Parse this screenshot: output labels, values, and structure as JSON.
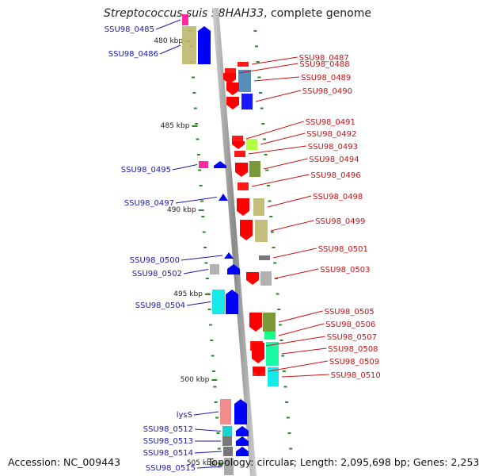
{
  "title": {
    "organism": "Streptococcus suis 98HAH33",
    "suffix": ", complete genome"
  },
  "footer": {
    "accession": "Accession: NC_009443",
    "summary": "Topology: circular; Length: 2,095,698 bp; Genes: 2,253"
  },
  "colors": {
    "left_label": "#1a1ab4",
    "right_label": "#cc1010",
    "axis": "#888888",
    "tick": "#2a8a2a"
  },
  "axis": {
    "start_kbp": 478.5,
    "end_kbp": 506.8,
    "major_ticks": [
      "480 kbp",
      "485 kbp",
      "490 kbp",
      "495 kbp",
      "500 kbp",
      "505 kbp"
    ]
  },
  "genes_left": [
    {
      "label": "SSU98_0485",
      "color": "#ff1493"
    },
    {
      "label": "SSU98_0486",
      "color": "#bdb76b"
    },
    {
      "label": "SSU98_0495",
      "color": "#ff1493"
    },
    {
      "label": "SSU98_0497",
      "color": "#0000ff"
    },
    {
      "label": "SSU98_0500",
      "color": "#0000ff"
    },
    {
      "label": "SSU98_0502",
      "color": "#a9a9a9"
    },
    {
      "label": "SSU98_0504",
      "color": "#00e5e5"
    },
    {
      "label": "lysS",
      "color": "#f08080"
    },
    {
      "label": "SSU98_0512",
      "color": "#00cccc"
    },
    {
      "label": "SSU98_0513",
      "color": "#696969"
    },
    {
      "label": "SSU98_0514",
      "color": "#696969"
    },
    {
      "label": "SSU98_0515",
      "color": "#a0a0a0"
    }
  ],
  "genes_right": [
    {
      "label": "SSU98_0487",
      "color": "#ff0000"
    },
    {
      "label": "SSU98_0488",
      "color": "#ff0000"
    },
    {
      "label": "SSU98_0489",
      "color": "#4682b4"
    },
    {
      "label": "SSU98_0490",
      "color": "#0000ff"
    },
    {
      "label": "SSU98_0491",
      "color": "#ff0000"
    },
    {
      "label": "SSU98_0492",
      "color": "#adff2f"
    },
    {
      "label": "SSU98_0493",
      "color": "#ff0000"
    },
    {
      "label": "SSU98_0494",
      "color": "#6b8e23"
    },
    {
      "label": "SSU98_0496",
      "color": "#ff0000"
    },
    {
      "label": "SSU98_0498",
      "color": "#bdb76b"
    },
    {
      "label": "SSU98_0499",
      "color": "#bdb76b"
    },
    {
      "label": "SSU98_0501",
      "color": "#696969"
    },
    {
      "label": "SSU98_0503",
      "color": "#a9a9a9"
    },
    {
      "label": "SSU98_0505",
      "color": "#6b8e23"
    },
    {
      "label": "SSU98_0506",
      "color": "#00ff7f"
    },
    {
      "label": "SSU98_0507",
      "color": "#ff0000"
    },
    {
      "label": "SSU98_0508",
      "color": "#00fa9a"
    },
    {
      "label": "SSU98_0509",
      "color": "#ff0000"
    },
    {
      "label": "SSU98_0510",
      "color": "#00e5e5"
    }
  ]
}
